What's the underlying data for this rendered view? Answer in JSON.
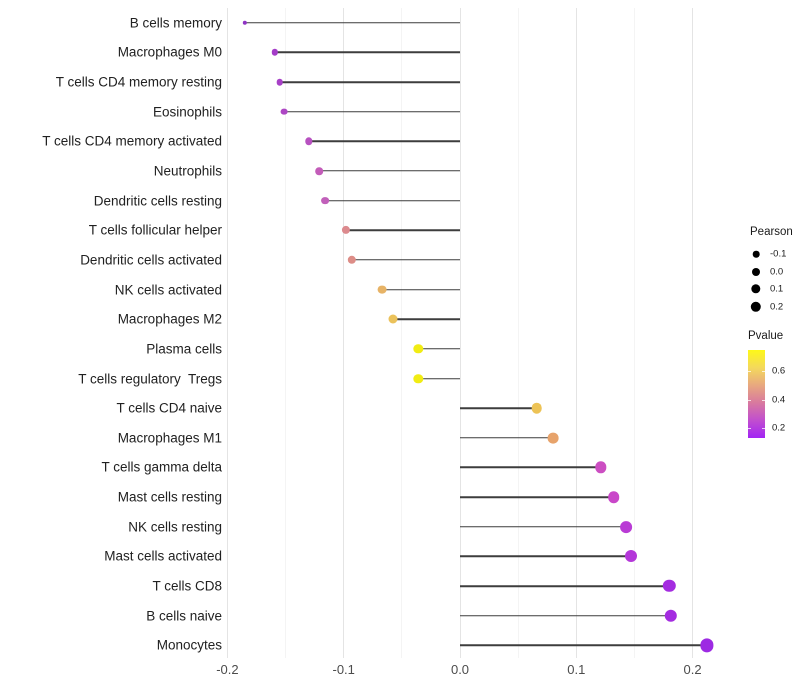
{
  "figure": {
    "background": "#ffffff",
    "grid_major_color": "#e4e4e4",
    "grid_minor_color": "#f4f4f4",
    "stem_color": "#3d3d3d",
    "axis_text_color": "#4c4c4c",
    "category_text_color": "#212121"
  },
  "chart_data": {
    "type": "scatter",
    "variant": "lollipop",
    "title": "",
    "xlabel": "",
    "ylabel": "",
    "xlim": [
      -0.215,
      0.235
    ],
    "grid": "major and minor vertical gridlines, no axis lines, white background",
    "x_major_ticks": [
      -0.2,
      -0.1,
      0.0,
      0.1,
      0.2
    ],
    "x_major_tick_labels": [
      "-0.2",
      "-0.1",
      "0.0",
      "0.1",
      "0.2"
    ],
    "x_minor_ticks": [
      -0.15,
      -0.05,
      0.05,
      0.15
    ],
    "baseline_value": 0.0,
    "points": [
      {
        "category": "B cells memory",
        "pearson": -0.185,
        "color": "#8f33c4",
        "radius": 2.2
      },
      {
        "category": "Macrophages M0",
        "pearson": -0.159,
        "color": "#a43cc8",
        "radius": 3.2
      },
      {
        "category": "T cells CD4 memory resting",
        "pearson": -0.155,
        "color": "#a740c7",
        "radius": 3.3
      },
      {
        "category": "Eosinophils",
        "pearson": -0.151,
        "color": "#ad46c4",
        "radius": 3.4
      },
      {
        "category": "T cells CD4 memory activated",
        "pearson": -0.13,
        "color": "#b751c0",
        "radius": 3.7
      },
      {
        "category": "Neutrophils",
        "pearson": -0.121,
        "color": "#c35cb9",
        "radius": 3.8
      },
      {
        "category": "Dendritic cells resting",
        "pearson": -0.116,
        "color": "#c160ba",
        "radius": 3.9
      },
      {
        "category": "T cells follicular helper",
        "pearson": -0.098,
        "color": "#dc8a8e",
        "radius": 4.1
      },
      {
        "category": "Dendritic cells activated",
        "pearson": -0.093,
        "color": "#dd8d87",
        "radius": 4.2
      },
      {
        "category": "NK cells activated",
        "pearson": -0.067,
        "color": "#e7b366",
        "radius": 4.4
      },
      {
        "category": "Macrophages M2",
        "pearson": -0.058,
        "color": "#ebc25b",
        "radius": 4.5
      },
      {
        "category": "Plasma cells",
        "pearson": -0.036,
        "color": "#f1ec13",
        "radius": 4.7
      },
      {
        "category": "T cells regulatory  Tregs",
        "pearson": -0.036,
        "color": "#f1ec13",
        "radius": 4.7
      },
      {
        "category": "T cells CD4 naive",
        "pearson": 0.066,
        "color": "#edc356",
        "radius": 5.3
      },
      {
        "category": "Macrophages M1",
        "pearson": 0.08,
        "color": "#e7a36b",
        "radius": 5.4
      },
      {
        "category": "T cells gamma delta",
        "pearson": 0.121,
        "color": "#cc4ec2",
        "radius": 5.7
      },
      {
        "category": "Mast cells resting",
        "pearson": 0.132,
        "color": "#c947c9",
        "radius": 5.8
      },
      {
        "category": "NK cells resting",
        "pearson": 0.143,
        "color": "#b93bd5",
        "radius": 5.9
      },
      {
        "category": "Mast cells activated",
        "pearson": 0.147,
        "color": "#b437d9",
        "radius": 6.0
      },
      {
        "category": "T cells CD8",
        "pearson": 0.18,
        "color": "#a42ce0",
        "radius": 6.2
      },
      {
        "category": "B cells naive",
        "pearson": 0.181,
        "color": "#a42ce0",
        "radius": 6.2
      },
      {
        "category": "Monocytes",
        "pearson": 0.212,
        "color": "#9d2ae3",
        "radius": 6.6
      }
    ],
    "legend_size": {
      "title": "Pearson",
      "dot_color": "#000000",
      "entries": [
        {
          "label": "-0.1",
          "radius": 3.3
        },
        {
          "label": "0.0",
          "radius": 4.0
        },
        {
          "label": "0.1",
          "radius": 4.7
        },
        {
          "label": "0.2",
          "radius": 5.2
        }
      ]
    },
    "legend_color": {
      "title": "Pvalue",
      "tick_labels": [
        "0.6",
        "0.4",
        "0.2"
      ],
      "tick_fractions_from_top": [
        0.24,
        0.565,
        0.885
      ],
      "gradient_top_to_bottom": [
        "#fdf818",
        "#f4d95c",
        "#e8a87f",
        "#d8799f",
        "#c14ecf",
        "#a224f4"
      ]
    }
  }
}
